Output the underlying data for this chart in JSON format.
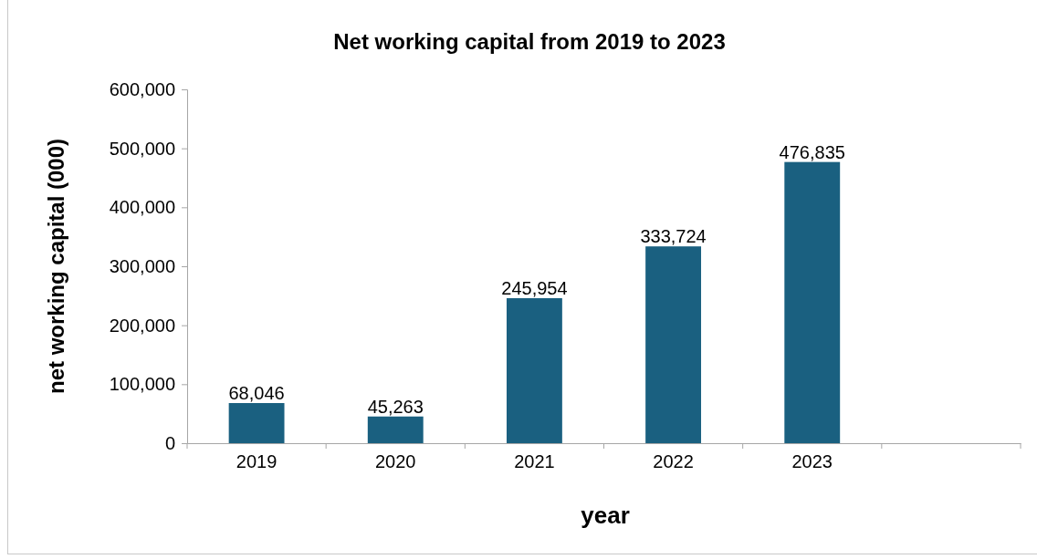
{
  "chart_data": {
    "type": "bar",
    "title": "Net working capital from 2019 to 2023",
    "xlabel": "year",
    "ylabel": "net working capital (000)",
    "categories": [
      "2019",
      "2020",
      "2021",
      "2022",
      "2023",
      null
    ],
    "values": [
      68046,
      45263,
      245954,
      333724,
      476835,
      null
    ],
    "color": "#1a6080",
    "ylim": [
      0,
      600000
    ],
    "yticks": [
      {
        "value": 0,
        "label": "0"
      },
      {
        "value": 100000,
        "label": "100,000"
      },
      {
        "value": 200000,
        "label": "200,000"
      },
      {
        "value": 300000,
        "label": "300,000"
      },
      {
        "value": 400000,
        "label": "400,000"
      },
      {
        "value": 500000,
        "label": "500,000"
      },
      {
        "value": 600000,
        "label": "600,000"
      }
    ],
    "value_labels": [
      "68,046",
      "45,263",
      "245,954",
      "333,724",
      "476,835",
      null
    ]
  }
}
